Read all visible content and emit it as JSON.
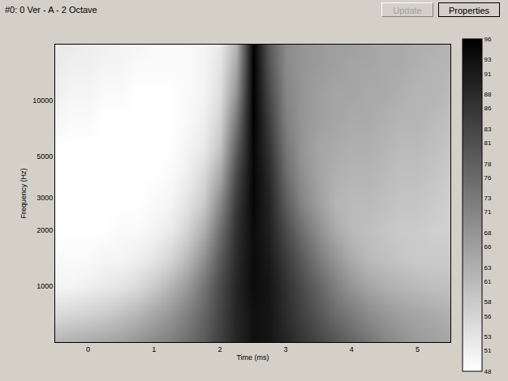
{
  "window": {
    "title": "#0: 0 Ver - A - 2 Octave",
    "buttons": [
      "Update",
      "Properties"
    ]
  },
  "chart_data": {
    "type": "heatmap",
    "x_label": "Time (ms)",
    "y_label": "Frequency (Hz)",
    "log": "y",
    "grid": true,
    "xlim": [
      -0.5,
      5.5
    ],
    "xticks": [
      0,
      1,
      2,
      3,
      4,
      5
    ],
    "ylim": [
      500,
      20000
    ],
    "yticks": [
      1000,
      2000,
      3000,
      5000,
      10000
    ],
    "x": [
      -0.5,
      -0.25,
      0,
      0.25,
      0.5,
      0.75,
      1,
      1.25,
      1.5,
      1.75,
      2,
      2.25,
      2.5,
      2.75,
      3,
      3.25,
      3.5,
      3.75,
      4,
      4.25,
      4.5,
      4.75,
      5,
      5.25,
      5.5
    ],
    "y": [
      500,
      700,
      1000,
      1400,
      2000,
      2800,
      4000,
      5600,
      8000,
      11000,
      16000,
      20000
    ],
    "cells": [
      [
        62,
        63,
        64,
        65,
        66,
        68,
        70,
        72,
        75,
        79,
        84,
        89,
        93,
        92,
        89,
        86,
        83,
        80,
        77,
        74,
        71,
        69,
        67,
        66,
        65
      ],
      [
        55,
        56,
        57,
        58,
        60,
        62,
        65,
        68,
        72,
        77,
        83,
        89,
        93,
        92,
        88,
        84,
        80,
        76,
        73,
        70,
        68,
        66,
        65,
        64,
        63
      ],
      [
        50,
        50,
        51,
        52,
        53,
        55,
        58,
        62,
        67,
        74,
        82,
        89,
        94,
        92,
        87,
        82,
        77,
        72,
        68,
        65,
        63,
        62,
        61,
        60,
        60
      ],
      [
        49,
        49,
        49,
        50,
        50,
        51,
        53,
        56,
        61,
        69,
        79,
        88,
        94,
        91,
        85,
        79,
        73,
        68,
        64,
        61,
        60,
        59,
        58,
        58,
        58
      ],
      [
        48,
        48,
        48,
        48,
        49,
        49,
        50,
        52,
        56,
        63,
        75,
        87,
        94,
        90,
        82,
        75,
        69,
        64,
        61,
        60,
        59,
        58,
        58,
        57,
        57
      ],
      [
        48,
        48,
        48,
        48,
        48,
        48,
        49,
        50,
        53,
        58,
        70,
        85,
        95,
        89,
        79,
        71,
        66,
        62,
        61,
        61,
        60,
        59,
        59,
        58,
        57
      ],
      [
        48,
        48,
        48,
        48,
        48,
        48,
        48,
        49,
        51,
        55,
        64,
        82,
        95,
        88,
        76,
        69,
        65,
        63,
        62,
        62,
        61,
        60,
        60,
        59,
        58
      ],
      [
        48,
        48,
        48,
        48,
        48,
        48,
        48,
        48,
        50,
        52,
        59,
        78,
        95,
        86,
        74,
        68,
        65,
        64,
        63,
        63,
        62,
        61,
        61,
        60,
        59
      ],
      [
        50,
        49,
        49,
        48,
        48,
        48,
        48,
        48,
        49,
        51,
        56,
        73,
        96,
        84,
        72,
        68,
        66,
        65,
        64,
        64,
        63,
        62,
        62,
        61,
        60
      ],
      [
        51,
        50,
        50,
        49,
        49,
        48,
        48,
        48,
        49,
        50,
        54,
        68,
        96,
        82,
        71,
        68,
        66,
        65,
        65,
        64,
        64,
        63,
        62,
        62,
        61
      ],
      [
        52,
        51,
        51,
        50,
        50,
        49,
        49,
        49,
        49,
        50,
        53,
        64,
        96,
        80,
        70,
        68,
        67,
        66,
        65,
        65,
        64,
        64,
        63,
        62,
        62
      ],
      [
        52,
        52,
        51,
        51,
        50,
        50,
        49,
        49,
        49,
        50,
        52,
        62,
        96,
        79,
        70,
        68,
        67,
        66,
        66,
        65,
        64,
        64,
        63,
        63,
        62
      ]
    ],
    "color_range": [
      48,
      96
    ],
    "color_ticks": [
      48,
      51,
      53,
      56,
      58,
      61,
      63,
      66,
      68,
      71,
      73,
      76,
      78,
      81,
      83,
      86,
      88,
      91,
      93,
      96
    ]
  }
}
